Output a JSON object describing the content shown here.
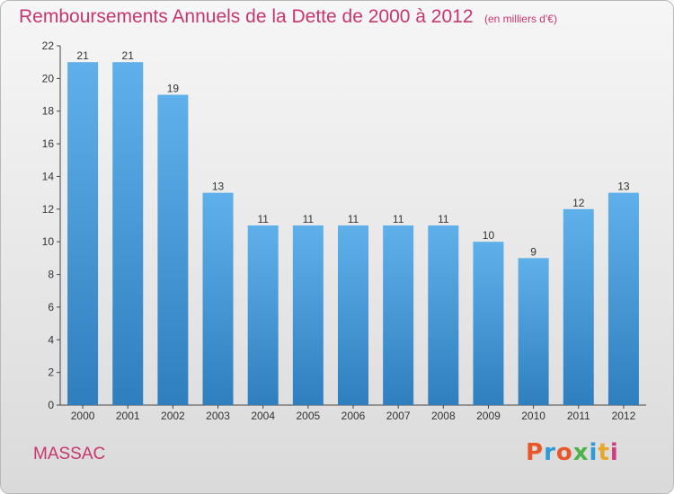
{
  "header": {
    "title": "Remboursements Annuels de la Dette de 2000 à 2012",
    "unit": "(en milliers d'€)"
  },
  "footer": {
    "place": "MASSAC",
    "logo": "Proxiti",
    "logo_colors": [
      "#e8562a",
      "#2f9bd6",
      "#e8562a",
      "#4fb34a",
      "#2f9bd6",
      "#e8a72a",
      "#d23b83"
    ]
  },
  "colors": {
    "bar_top": "#5fb0ea",
    "bar_bottom": "#2f7fbf",
    "axis": "#444444",
    "grid": "#cfcfcf",
    "title": "#c8366e"
  },
  "chart_data": {
    "type": "bar",
    "categories": [
      "2000",
      "2001",
      "2002",
      "2003",
      "2004",
      "2005",
      "2006",
      "2007",
      "2008",
      "2009",
      "2010",
      "2011",
      "2012"
    ],
    "values": [
      21,
      21,
      19,
      13,
      11,
      11,
      11,
      11,
      11,
      10,
      9,
      12,
      13
    ],
    "ylim": [
      0,
      22
    ],
    "yticks": [
      0,
      2,
      4,
      6,
      8,
      10,
      12,
      14,
      16,
      18,
      20,
      22
    ],
    "data_labels": true,
    "grid": false
  }
}
